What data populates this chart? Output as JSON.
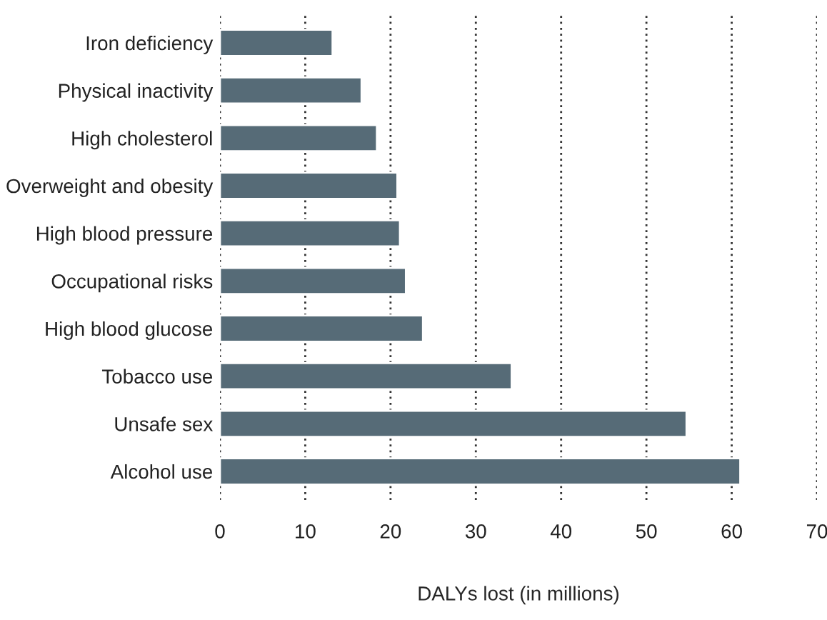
{
  "chart_data": {
    "type": "bar",
    "orientation": "horizontal",
    "xlabel": "DALYs lost (in millions)",
    "categories": [
      "Iron deficiency",
      "Physical inactivity",
      "High cholesterol",
      "Overweight and obesity",
      "High blood pressure",
      "Occupational risks",
      "High blood glucose",
      "Tobacco use",
      "Unsafe sex",
      "Alcohol use"
    ],
    "values": [
      13.2,
      16.6,
      18.4,
      20.8,
      21.1,
      21.8,
      23.8,
      34.2,
      54.7,
      61.0
    ],
    "color": "#566b77",
    "xlim": [
      0,
      70
    ],
    "xticks": [
      0,
      10,
      20,
      30,
      40,
      50,
      60,
      70
    ],
    "grid": "x"
  }
}
